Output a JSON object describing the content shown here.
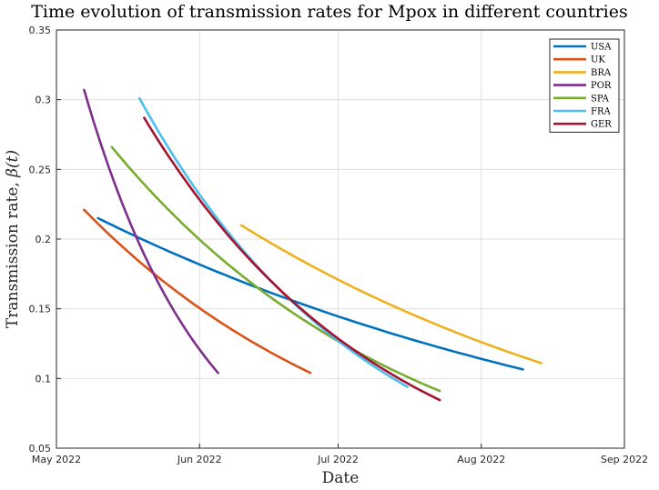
{
  "chart_data": {
    "type": "line",
    "title": "Time evolution of transmission rates for Mpox in different countries",
    "xlabel": "Date",
    "ylabel_text": "Transmission rate, ",
    "ylabel_symbol": "β(t)",
    "x_unit": "days since 2022-05-01",
    "xlim": [
      0,
      123
    ],
    "ylim": [
      0.05,
      0.35
    ],
    "x_ticks": [
      {
        "value": 0,
        "label": "May 2022"
      },
      {
        "value": 31,
        "label": "Jun 2022"
      },
      {
        "value": 61,
        "label": "Jul 2022"
      },
      {
        "value": 92,
        "label": "Aug 2022"
      },
      {
        "value": 123,
        "label": "Sep 2022"
      }
    ],
    "y_ticks": [
      {
        "value": 0.05,
        "label": "0.05"
      },
      {
        "value": 0.1,
        "label": "0.1"
      },
      {
        "value": 0.15,
        "label": "0.15"
      },
      {
        "value": 0.2,
        "label": "0.2"
      },
      {
        "value": 0.25,
        "label": "0.25"
      },
      {
        "value": 0.3,
        "label": "0.3"
      },
      {
        "value": 0.35,
        "label": "0.35"
      }
    ],
    "grid": true,
    "legend_position": "top-right",
    "series": [
      {
        "name": "USA",
        "color": "#0072BD",
        "x": [
          9,
          101
        ],
        "y": [
          0.215,
          0.1065
        ]
      },
      {
        "name": "UK",
        "color": "#D95319",
        "x": [
          6,
          55
        ],
        "y": [
          0.221,
          0.104
        ]
      },
      {
        "name": "BRA",
        "color": "#EDB120",
        "x": [
          40,
          105
        ],
        "y": [
          0.21,
          0.111
        ]
      },
      {
        "name": "POR",
        "color": "#7E2F8E",
        "x": [
          6,
          35
        ],
        "y": [
          0.307,
          0.104
        ]
      },
      {
        "name": "SPA",
        "color": "#77AC30",
        "x": [
          12,
          83
        ],
        "y": [
          0.266,
          0.091
        ]
      },
      {
        "name": "FRA",
        "color": "#4DBEEE",
        "x": [
          18,
          76
        ],
        "y": [
          0.301,
          0.094
        ]
      },
      {
        "name": "GER",
        "color": "#A2142F",
        "x": [
          19,
          83
        ],
        "y": [
          0.287,
          0.0845
        ]
      }
    ]
  }
}
